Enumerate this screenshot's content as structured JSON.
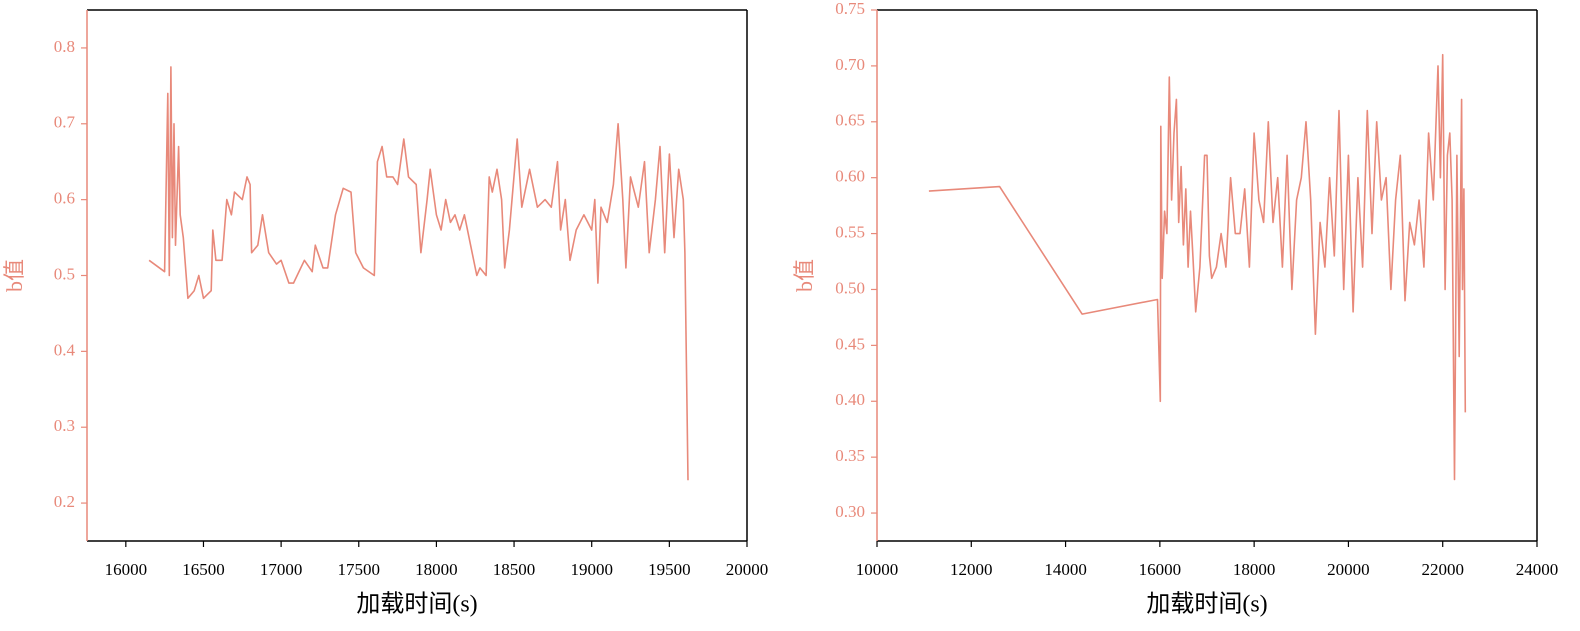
{
  "chart_data": [
    {
      "type": "line",
      "xlabel": "加载时间(s)",
      "ylabel": "b值",
      "color": "#e8897a",
      "xlim": [
        15750,
        20000
      ],
      "xticks": [
        16000,
        16500,
        17000,
        17500,
        18000,
        18500,
        19000,
        19500,
        20000
      ],
      "ylim": [
        0.15,
        0.85
      ],
      "yticks": [
        0.2,
        0.3,
        0.4,
        0.5,
        0.6,
        0.7,
        0.8
      ],
      "x": [
        16150,
        16250,
        16270,
        16280,
        16290,
        16300,
        16310,
        16320,
        16340,
        16350,
        16370,
        16400,
        16440,
        16470,
        16500,
        16550,
        16560,
        16580,
        16620,
        16650,
        16680,
        16700,
        16750,
        16780,
        16800,
        16810,
        16850,
        16880,
        16920,
        16970,
        17000,
        17050,
        17080,
        17150,
        17200,
        17220,
        17270,
        17300,
        17350,
        17400,
        17450,
        17480,
        17530,
        17600,
        17620,
        17650,
        17680,
        17720,
        17750,
        17790,
        17820,
        17870,
        17900,
        17940,
        17960,
        18000,
        18030,
        18060,
        18090,
        18120,
        18150,
        18180,
        18220,
        18260,
        18280,
        18320,
        18340,
        18360,
        18390,
        18420,
        18440,
        18470,
        18520,
        18550,
        18600,
        18650,
        18700,
        18740,
        18780,
        18800,
        18830,
        18860,
        18900,
        18950,
        19000,
        19020,
        19040,
        19060,
        19100,
        19140,
        19170,
        19200,
        19220,
        19250,
        19300,
        19340,
        19370,
        19410,
        19440,
        19470,
        19500,
        19530,
        19560,
        19590,
        19600,
        19620
      ],
      "values": [
        0.52,
        0.505,
        0.74,
        0.5,
        0.775,
        0.55,
        0.7,
        0.54,
        0.67,
        0.58,
        0.55,
        0.47,
        0.48,
        0.5,
        0.47,
        0.48,
        0.56,
        0.52,
        0.52,
        0.6,
        0.58,
        0.61,
        0.6,
        0.63,
        0.62,
        0.53,
        0.54,
        0.58,
        0.53,
        0.515,
        0.52,
        0.49,
        0.49,
        0.52,
        0.505,
        0.54,
        0.51,
        0.51,
        0.58,
        0.615,
        0.61,
        0.53,
        0.51,
        0.5,
        0.65,
        0.67,
        0.63,
        0.63,
        0.62,
        0.68,
        0.63,
        0.62,
        0.53,
        0.6,
        0.64,
        0.58,
        0.56,
        0.6,
        0.57,
        0.58,
        0.56,
        0.58,
        0.54,
        0.5,
        0.51,
        0.5,
        0.63,
        0.61,
        0.64,
        0.6,
        0.51,
        0.56,
        0.68,
        0.59,
        0.64,
        0.59,
        0.6,
        0.59,
        0.65,
        0.56,
        0.6,
        0.52,
        0.56,
        0.58,
        0.56,
        0.6,
        0.49,
        0.59,
        0.57,
        0.62,
        0.7,
        0.6,
        0.51,
        0.63,
        0.59,
        0.65,
        0.53,
        0.6,
        0.67,
        0.53,
        0.66,
        0.55,
        0.64,
        0.6,
        0.53,
        0.23
      ]
    },
    {
      "type": "line",
      "xlabel": "加载时间(s)",
      "ylabel": "b值",
      "color": "#e8897a",
      "xlim": [
        10000,
        24000
      ],
      "xticks": [
        10000,
        12000,
        14000,
        16000,
        18000,
        20000,
        22000,
        24000
      ],
      "ylim": [
        0.275,
        0.75
      ],
      "yticks": [
        {
          "value": 0.3,
          "label": "0.30"
        },
        0.35,
        {
          "value": 0.4,
          "label": "0.40"
        },
        0.45,
        {
          "value": 0.5,
          "label": "0.50"
        },
        0.55,
        {
          "value": 0.6,
          "label": "0.60"
        },
        0.65,
        {
          "value": 0.7,
          "label": "0.70"
        },
        0.75
      ],
      "x": [
        11100,
        12600,
        14350,
        15950,
        16010,
        16020,
        16050,
        16100,
        16150,
        16200,
        16250,
        16300,
        16350,
        16400,
        16450,
        16500,
        16550,
        16600,
        16650,
        16700,
        16760,
        16850,
        16950,
        17000,
        17050,
        17100,
        17200,
        17300,
        17400,
        17500,
        17600,
        17700,
        17800,
        17900,
        18000,
        18100,
        18200,
        18300,
        18400,
        18500,
        18600,
        18700,
        18800,
        18900,
        19000,
        19100,
        19200,
        19300,
        19400,
        19500,
        19600,
        19700,
        19800,
        19900,
        20000,
        20100,
        20200,
        20300,
        20400,
        20500,
        20600,
        20700,
        20800,
        20900,
        21000,
        21100,
        21200,
        21300,
        21400,
        21500,
        21600,
        21700,
        21800,
        21900,
        21950,
        22000,
        22050,
        22100,
        22150,
        22200,
        22250,
        22300,
        22350,
        22400,
        22420,
        22450,
        22480
      ],
      "values": [
        0.588,
        0.592,
        0.478,
        0.491,
        0.4,
        0.646,
        0.51,
        0.57,
        0.55,
        0.69,
        0.58,
        0.64,
        0.67,
        0.56,
        0.61,
        0.54,
        0.59,
        0.52,
        0.57,
        0.53,
        0.48,
        0.52,
        0.62,
        0.62,
        0.53,
        0.51,
        0.52,
        0.55,
        0.52,
        0.6,
        0.55,
        0.55,
        0.59,
        0.52,
        0.64,
        0.58,
        0.56,
        0.65,
        0.56,
        0.6,
        0.52,
        0.62,
        0.5,
        0.58,
        0.6,
        0.65,
        0.58,
        0.46,
        0.56,
        0.52,
        0.6,
        0.53,
        0.66,
        0.5,
        0.62,
        0.48,
        0.6,
        0.52,
        0.66,
        0.55,
        0.65,
        0.58,
        0.6,
        0.5,
        0.58,
        0.62,
        0.49,
        0.56,
        0.54,
        0.58,
        0.52,
        0.64,
        0.58,
        0.7,
        0.6,
        0.71,
        0.5,
        0.62,
        0.64,
        0.58,
        0.33,
        0.62,
        0.44,
        0.67,
        0.5,
        0.59,
        0.39
      ]
    }
  ]
}
